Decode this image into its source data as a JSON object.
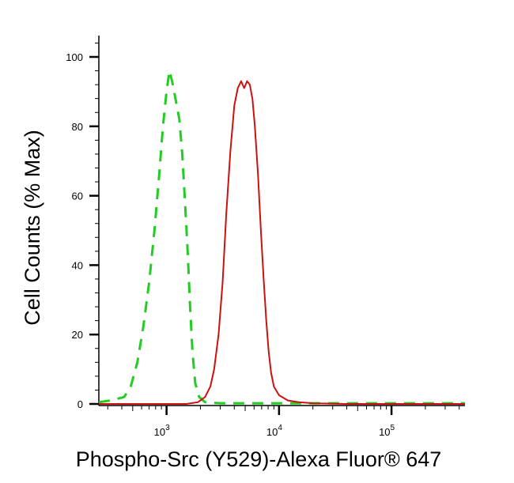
{
  "chart_data": {
    "type": "line",
    "title": "",
    "xlabel": "Phospho-Src (Y529)-Alexa Fluor® 647",
    "ylabel": "Cell Counts (% Max)",
    "x_scale": "log",
    "xlim": [
      250,
      450000
    ],
    "ylim": [
      0,
      105
    ],
    "y_ticks": [
      {
        "value": 0,
        "label": "0"
      },
      {
        "value": 20,
        "label": "20"
      },
      {
        "value": 40,
        "label": "40"
      },
      {
        "value": 60,
        "label": "60"
      },
      {
        "value": 80,
        "label": "80"
      },
      {
        "value": 100,
        "label": "100"
      }
    ],
    "x_ticks": [
      {
        "value": 1000,
        "base": "10",
        "exp": "3"
      },
      {
        "value": 10000,
        "base": "10",
        "exp": "4"
      },
      {
        "value": 100000,
        "base": "10",
        "exp": "5"
      }
    ],
    "grid": false,
    "legend": "none",
    "series": [
      {
        "color": "#22cc22",
        "style": "dashed",
        "points": [
          [
            250,
            0.5
          ],
          [
            320,
            1
          ],
          [
            420,
            2
          ],
          [
            480,
            5
          ],
          [
            550,
            12
          ],
          [
            620,
            22
          ],
          [
            700,
            35
          ],
          [
            780,
            50
          ],
          [
            860,
            66
          ],
          [
            930,
            80
          ],
          [
            1000,
            90
          ],
          [
            1060,
            96
          ],
          [
            1120,
            93
          ],
          [
            1200,
            88
          ],
          [
            1300,
            82
          ],
          [
            1380,
            72
          ],
          [
            1460,
            58
          ],
          [
            1540,
            44
          ],
          [
            1620,
            28
          ],
          [
            1700,
            15
          ],
          [
            1800,
            6
          ],
          [
            1950,
            2
          ],
          [
            2200,
            0.5
          ],
          [
            3000,
            0.2
          ],
          [
            6000,
            0.2
          ],
          [
            20000,
            0.2
          ],
          [
            100000,
            0.2
          ],
          [
            450000,
            0.2
          ]
        ]
      },
      {
        "color": "#cc1111",
        "style": "solid",
        "points": [
          [
            250,
            0
          ],
          [
            1500,
            0
          ],
          [
            1900,
            0.5
          ],
          [
            2200,
            2
          ],
          [
            2450,
            5
          ],
          [
            2650,
            10
          ],
          [
            2900,
            20
          ],
          [
            3150,
            35
          ],
          [
            3400,
            55
          ],
          [
            3700,
            73
          ],
          [
            4000,
            86
          ],
          [
            4300,
            91
          ],
          [
            4600,
            93
          ],
          [
            4900,
            91
          ],
          [
            5200,
            93
          ],
          [
            5500,
            92
          ],
          [
            5800,
            88
          ],
          [
            6100,
            80
          ],
          [
            6500,
            66
          ],
          [
            6900,
            50
          ],
          [
            7300,
            36
          ],
          [
            7700,
            24
          ],
          [
            8100,
            15
          ],
          [
            8500,
            9
          ],
          [
            9000,
            5
          ],
          [
            10000,
            2.5
          ],
          [
            12000,
            1
          ],
          [
            15000,
            0.5
          ],
          [
            20000,
            0.2
          ],
          [
            40000,
            0
          ],
          [
            450000,
            0
          ]
        ]
      }
    ]
  }
}
